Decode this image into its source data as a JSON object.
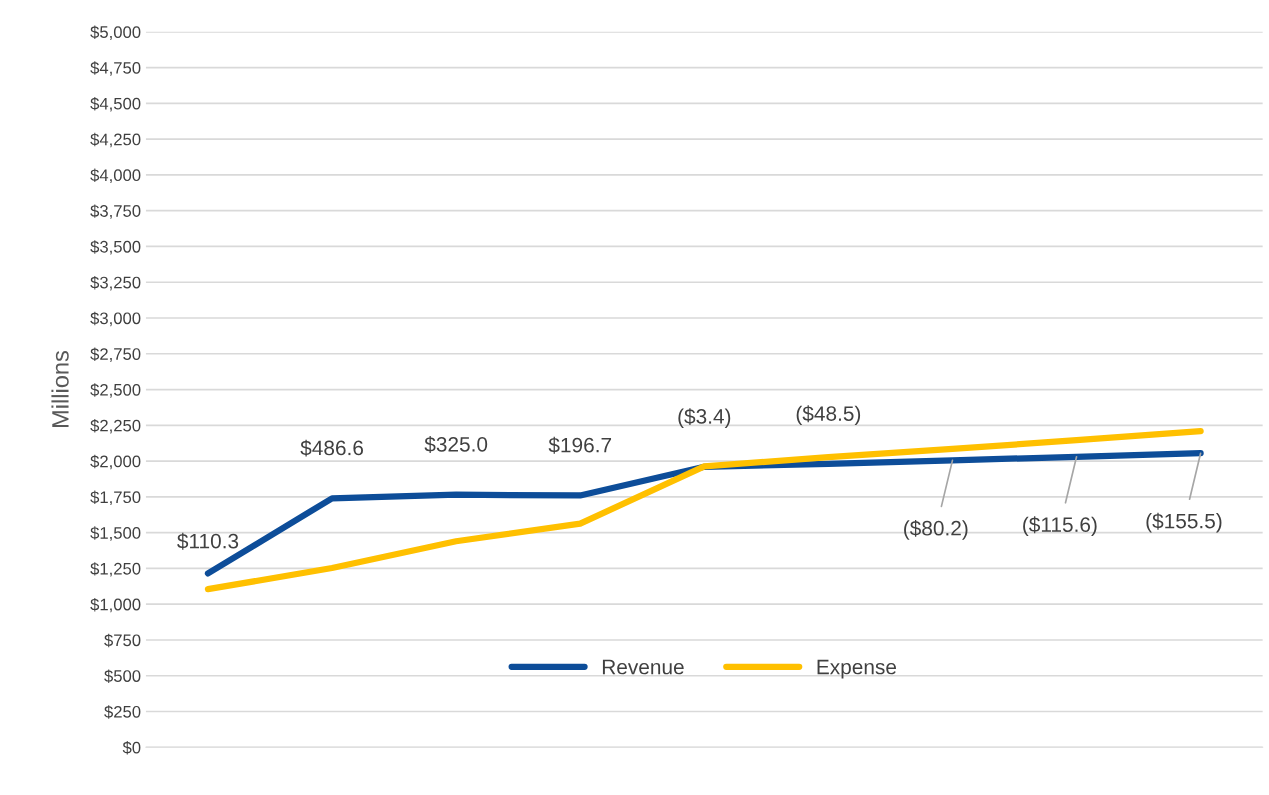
{
  "chart_data": {
    "type": "line",
    "ylabel": "Millions",
    "categories": [
      null,
      null,
      null,
      null,
      null,
      null,
      null,
      null,
      null
    ],
    "series": [
      {
        "name": "Revenue",
        "color": "#0d4d99",
        "values": [
          1215,
          1740,
          1765,
          1760,
          1960,
          1980,
          2005,
          2030,
          2055
        ]
      },
      {
        "name": "Expense",
        "color": "#ffc000",
        "values": [
          1105,
          1253,
          1440,
          1563,
          1963,
          2028,
          2085,
          2146,
          2210
        ]
      }
    ],
    "annotations": [
      "$110.3",
      "$486.6",
      "$325.0",
      "$196.7",
      "($3.4)",
      "($48.5)",
      "($80.2)",
      "($115.6)",
      "($155.5)"
    ],
    "ylim": [
      0,
      5000
    ],
    "yticks": [
      {
        "value": 0,
        "label": "$0"
      },
      {
        "value": 250,
        "label": "$250"
      },
      {
        "value": 500,
        "label": "$500"
      },
      {
        "value": 750,
        "label": "$750"
      },
      {
        "value": 1000,
        "label": "$1,000"
      },
      {
        "value": 1250,
        "label": "$1,250"
      },
      {
        "value": 1500,
        "label": "$1,500"
      },
      {
        "value": 1750,
        "label": "$1,750"
      },
      {
        "value": 2000,
        "label": "$2,000"
      },
      {
        "value": 2250,
        "label": "$2,250"
      },
      {
        "value": 2500,
        "label": "$2,500"
      },
      {
        "value": 2750,
        "label": "$2,750"
      },
      {
        "value": 3000,
        "label": "$3,000"
      },
      {
        "value": 3250,
        "label": "$3,250"
      },
      {
        "value": 3500,
        "label": "$3,500"
      },
      {
        "value": 3750,
        "label": "$3,750"
      },
      {
        "value": 4000,
        "label": "$4,000"
      },
      {
        "value": 4250,
        "label": "$4,250"
      },
      {
        "value": 4500,
        "label": "$4,500"
      },
      {
        "value": 4750,
        "label": "$4,750"
      },
      {
        "value": 5000,
        "label": "$5,000"
      }
    ],
    "grid": "y",
    "legend": "bottom",
    "marker": "none",
    "line_style": "solid"
  }
}
